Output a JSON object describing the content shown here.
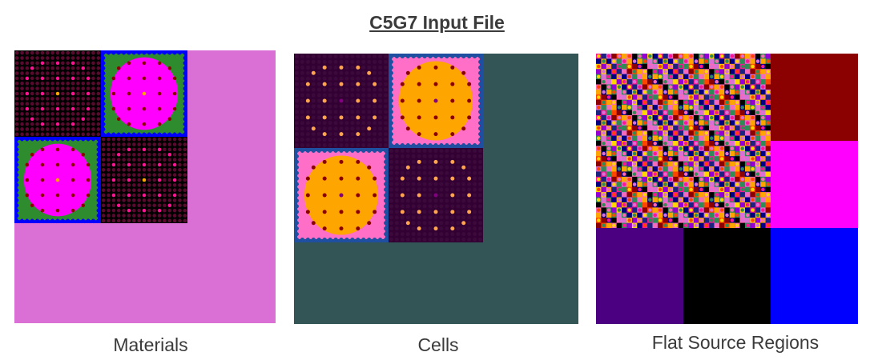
{
  "title": "C5G7 Input File",
  "panels": [
    {
      "caption": "Materials",
      "background": "#da70d6",
      "fuel": {
        "rod": "#5a0a2e",
        "cell": "#000000",
        "special": "#ff1493",
        "center": "#ffa500"
      },
      "mox": {
        "moderator": "#ff00ff",
        "outer": "#2e8b2e",
        "rod": "#8b0000",
        "center": "#ffa500",
        "border": "#0000ff"
      }
    },
    {
      "caption": "Cells",
      "background": "#335555",
      "fuel": {
        "rod": "#3b0a3b",
        "cell": "#330033",
        "special": "#ffa54f",
        "center": "#800080"
      },
      "mox": {
        "moderator": "#ffa500",
        "outer": "#ff6ec7",
        "rod": "#8b0000",
        "center": "#800080",
        "border": "#1f4fa0"
      }
    },
    {
      "caption": "Flat Source Regions",
      "palette": [
        "#ff1493",
        "#ffa500",
        "#ffd700",
        "#8b0000",
        "#2e8b57",
        "#1a237e",
        "#ff69b4",
        "#000080",
        "#ff4500",
        "#9400d3",
        "#da70d6",
        "#000000"
      ],
      "regions": [
        "#8b0000",
        "#ff00ff",
        "#4b0082",
        "#000000",
        "#0000ff"
      ]
    }
  ]
}
